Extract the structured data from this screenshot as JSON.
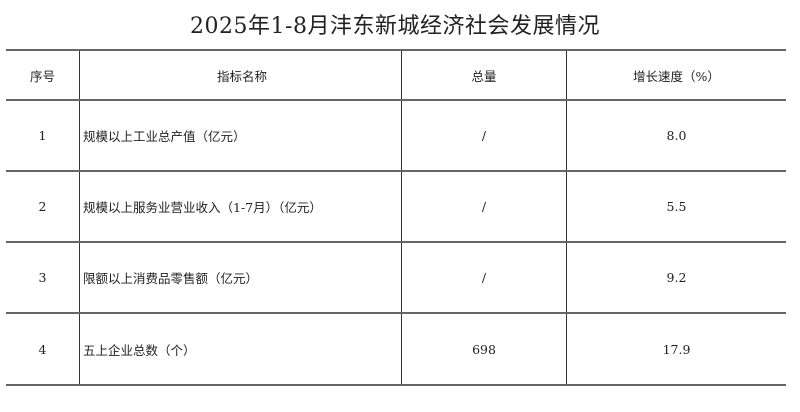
{
  "title": "2025年1-8月沣东新城经济社会发展情况",
  "table": {
    "headers": [
      "序号",
      "指标名称",
      "总量",
      "增长速度（%）"
    ],
    "rows": [
      {
        "no": "1",
        "name": "规模以上工业总产值（亿元）",
        "total": "/",
        "growth": "8.0"
      },
      {
        "no": "2",
        "name": "规模以上服务业营业收入（1-7月）（亿元）",
        "total": "/",
        "growth": "5.5"
      },
      {
        "no": "3",
        "name": "限额以上消费品零售额（亿元）",
        "total": "/",
        "growth": "9.2"
      },
      {
        "no": "4",
        "name": "五上企业总数（个）",
        "total": "698",
        "growth": "17.9"
      }
    ]
  }
}
